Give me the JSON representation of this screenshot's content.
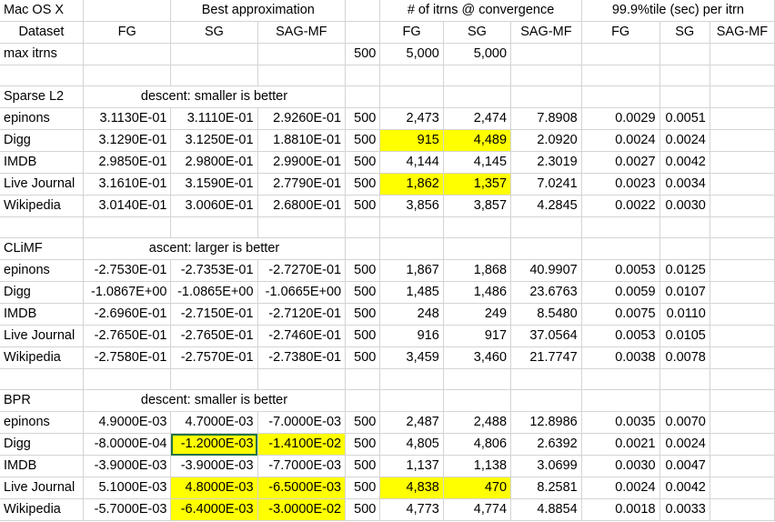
{
  "header": {
    "row1": [
      "Mac OS X",
      "",
      "Best approximation",
      "",
      "",
      "# of itrns @ convergence",
      "",
      "",
      "99.9%tile (sec) per itrn",
      "",
      ""
    ],
    "row2": [
      "Dataset",
      "FG",
      "SG",
      "SAG-MF",
      "",
      "FG",
      "SG",
      "SAG-MF",
      "FG",
      "SG",
      "SAG-MF"
    ]
  },
  "max_itrns": {
    "label": "max itrns",
    "fg": "500",
    "sg": "5,000",
    "sagmf": "5,000"
  },
  "sections": [
    {
      "name": "Sparse L2",
      "note": "descent: smaller is better",
      "rows": [
        [
          "epinons",
          "3.1130E-01",
          "3.1110E-01",
          "2.9260E-01",
          "500",
          "2,473",
          "2,474",
          "7.8908",
          "0.0029",
          "0.0051"
        ],
        [
          "Digg",
          "3.1290E-01",
          "3.1250E-01",
          "1.8810E-01",
          "500",
          "915",
          "4,489",
          "2.0920",
          "0.0024",
          "0.0024"
        ],
        [
          "IMDB",
          "2.9850E-01",
          "2.9800E-01",
          "2.9900E-01",
          "500",
          "4,144",
          "4,145",
          "2.3019",
          "0.0027",
          "0.0042"
        ],
        [
          "Live Journal",
          "3.1610E-01",
          "3.1590E-01",
          "2.7790E-01",
          "500",
          "1,862",
          "1,357",
          "7.0241",
          "0.0023",
          "0.0034"
        ],
        [
          "Wikipedia",
          "3.0140E-01",
          "3.0060E-01",
          "2.6800E-01",
          "500",
          "3,856",
          "3,857",
          "4.2845",
          "0.0022",
          "0.0030"
        ]
      ]
    },
    {
      "name": "CLiMF",
      "note": "ascent: larger is better",
      "rows": [
        [
          "epinons",
          "-2.7530E-01",
          "-2.7353E-01",
          "-2.7270E-01",
          "500",
          "1,867",
          "1,868",
          "40.9907",
          "0.0053",
          "0.0125"
        ],
        [
          "Digg",
          "-1.0867E+00",
          "-1.0865E+00",
          "-1.0665E+00",
          "500",
          "1,485",
          "1,486",
          "23.6763",
          "0.0059",
          "0.0107"
        ],
        [
          "IMDB",
          "-2.6960E-01",
          "-2.7150E-01",
          "-2.7120E-01",
          "500",
          "248",
          "249",
          "8.5480",
          "0.0075",
          "0.0110"
        ],
        [
          "Live Journal",
          "-2.7650E-01",
          "-2.7650E-01",
          "-2.7460E-01",
          "500",
          "916",
          "917",
          "37.0564",
          "0.0053",
          "0.0105"
        ],
        [
          "Wikipedia",
          "-2.7580E-01",
          "-2.7570E-01",
          "-2.7380E-01",
          "500",
          "3,459",
          "3,460",
          "21.7747",
          "0.0038",
          "0.0078"
        ]
      ]
    },
    {
      "name": "BPR",
      "note": "descent: smaller is better",
      "rows": [
        [
          "epinons",
          "4.9000E-03",
          "4.7000E-03",
          "-7.0000E-03",
          "500",
          "2,487",
          "2,488",
          "12.8986",
          "0.0035",
          "0.0070"
        ],
        [
          "Digg",
          "-8.0000E-04",
          "-1.2000E-03",
          "-1.4100E-02",
          "500",
          "4,805",
          "4,806",
          "2.6392",
          "0.0021",
          "0.0024"
        ],
        [
          "IMDB",
          "-3.9000E-03",
          "-3.9000E-03",
          "-7.7000E-03",
          "500",
          "1,137",
          "1,138",
          "3.0699",
          "0.0030",
          "0.0047"
        ],
        [
          "Live Journal",
          "5.1000E-03",
          "4.8000E-03",
          "-6.5000E-03",
          "500",
          "4,838",
          "470",
          "8.2581",
          "0.0024",
          "0.0042"
        ],
        [
          "Wikipedia",
          "-5.7000E-03",
          "-6.4000E-03",
          "-3.0000E-02",
          "500",
          "4,773",
          "4,774",
          "4.8854",
          "0.0018",
          "0.0033"
        ]
      ]
    }
  ],
  "highlights": [
    "0.1.5",
    "0.1.6",
    "0.3.5",
    "0.3.6",
    "2.1.2",
    "2.1.3",
    "2.3.2",
    "2.3.3",
    "2.3.5",
    "2.3.6",
    "2.4.2",
    "2.4.3"
  ],
  "selected_cell": "2.1.2",
  "colors": {
    "highlight": "#ffff00",
    "gridline": "#d4d4d4",
    "selection": "#217346"
  }
}
